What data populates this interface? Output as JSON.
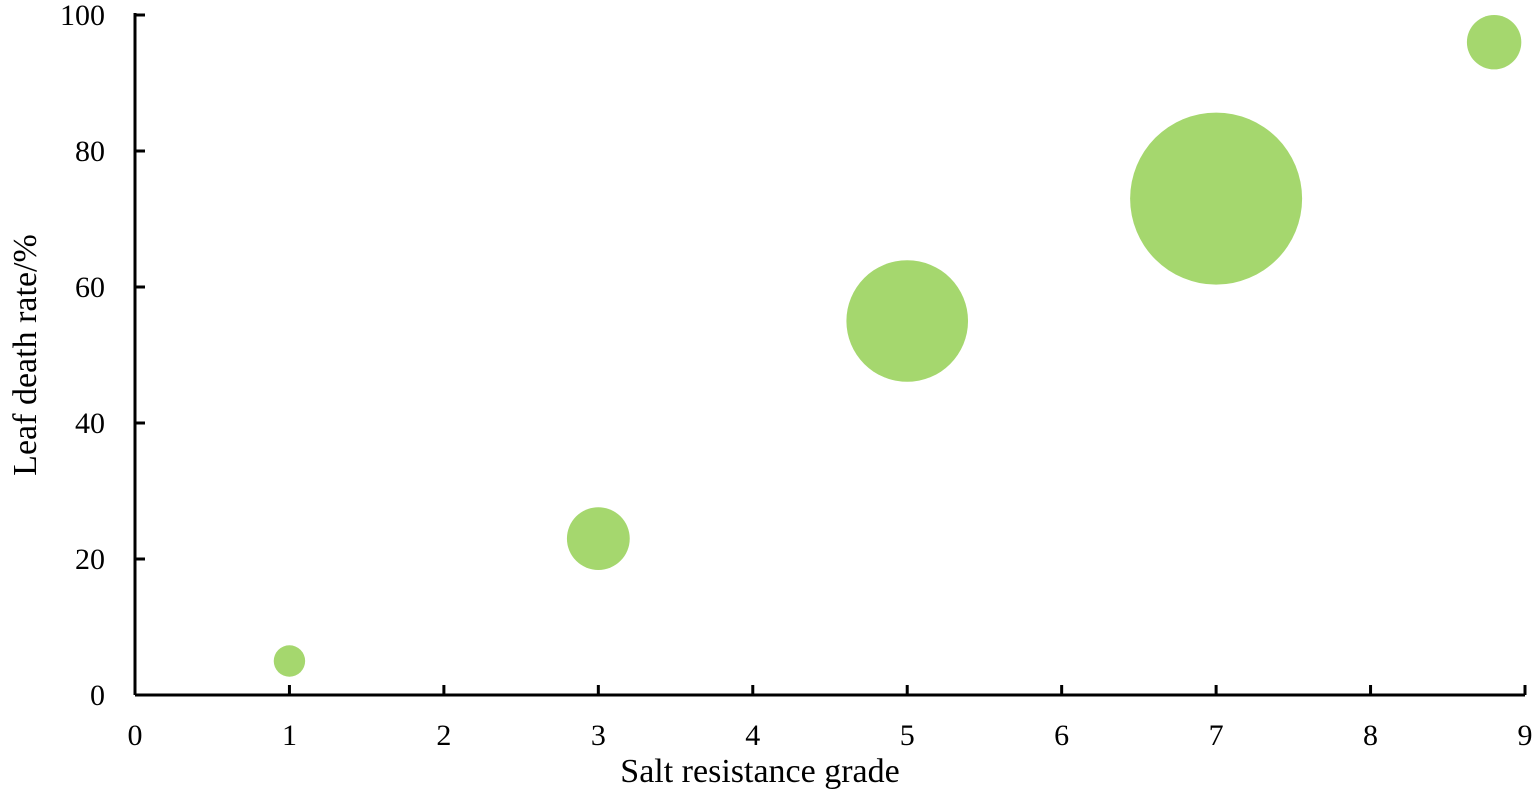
{
  "chart_data": {
    "type": "bubble",
    "title": "",
    "xlabel": "Salt resistance grade",
    "ylabel": "Leaf death rate/%",
    "xlim": [
      0,
      9
    ],
    "ylim": [
      0,
      100
    ],
    "xticks": [
      "0",
      "1",
      "2",
      "3",
      "4",
      "5",
      "6",
      "7",
      "8",
      "9"
    ],
    "yticks": [
      "0",
      "20",
      "40",
      "60",
      "80",
      "100"
    ],
    "grid": false,
    "legend": "none",
    "bubble_color": "#a5d76e",
    "points": [
      {
        "x": 1,
        "y": 5,
        "size": 1
      },
      {
        "x": 3,
        "y": 23,
        "size": 4
      },
      {
        "x": 5,
        "y": 55,
        "size": 15
      },
      {
        "x": 7,
        "y": 73,
        "size": 30
      },
      {
        "x": 8.8,
        "y": 96,
        "size": 3
      }
    ]
  }
}
